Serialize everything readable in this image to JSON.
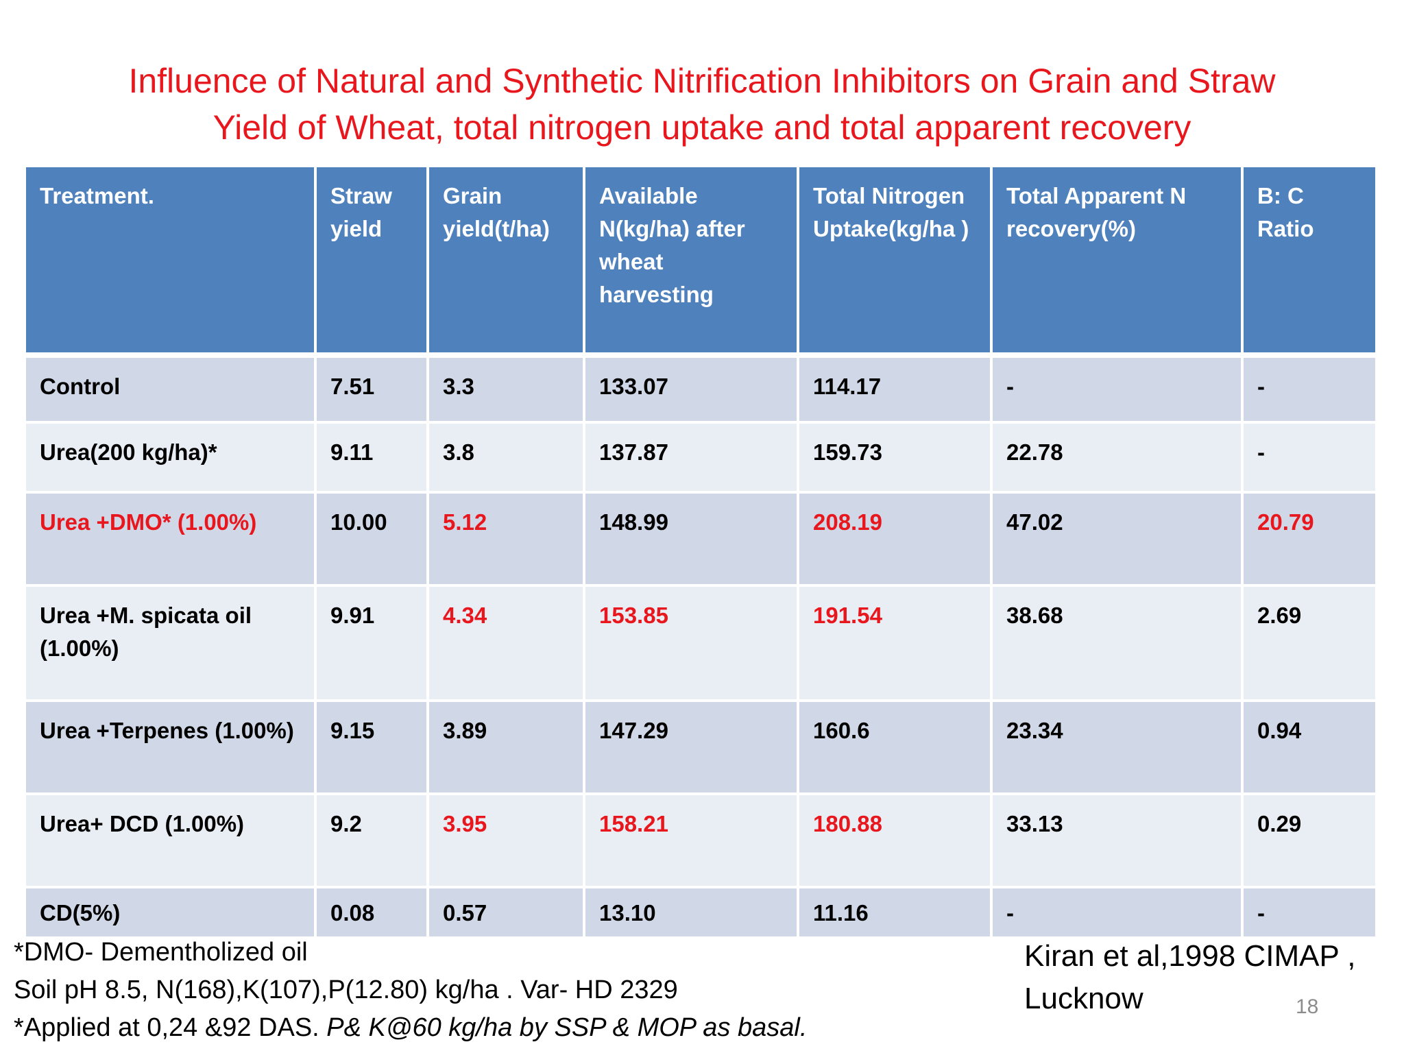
{
  "title": {
    "line1": "Influence of Natural and Synthetic Nitrification Inhibitors on Grain and Straw",
    "line2": "Yield of Wheat,  total nitrogen uptake and total apparent recovery"
  },
  "table": {
    "headers": [
      "Treatment.",
      "Straw yield",
      "Grain yield(t/ha)",
      "Available N(kg/ha) after wheat harvesting",
      "Total Nitrogen Uptake(kg/ha )",
      "Total Apparent  N recovery(%)",
      "B: C Ratio"
    ],
    "rows": [
      {
        "treatment": "Control",
        "straw": "7.51",
        "grain": "3.3",
        "available_n": "133.07",
        "n_uptake": "114.17",
        "recovery": "-",
        "bc_ratio": "-"
      },
      {
        "treatment": "Urea(200 kg/ha)*",
        "straw": "9.11",
        "grain": "3.8",
        "available_n": "137.87",
        "n_uptake": "159.73",
        "recovery": "22.78",
        "bc_ratio": "-"
      },
      {
        "treatment": "Urea +DMO* (1.00%)",
        "straw": "10.00",
        "grain": "5.12",
        "available_n": "148.99",
        "n_uptake": "208.19",
        "recovery": "47.02",
        "bc_ratio": "20.79"
      },
      {
        "treatment": "Urea +M. spicata oil (1.00%)",
        "straw": "9.91",
        "grain": "4.34",
        "available_n": "153.85",
        "n_uptake": "191.54",
        "recovery": "38.68",
        "bc_ratio": "2.69"
      },
      {
        "treatment": "Urea +Terpenes (1.00%)",
        "straw": "9.15",
        "grain": "3.89",
        "available_n": "147.29",
        "n_uptake": "160.6",
        "recovery": "23.34",
        "bc_ratio": "0.94"
      },
      {
        "treatment": "Urea+ DCD (1.00%)",
        "straw": "9.2",
        "grain": "3.95",
        "available_n": "158.21",
        "n_uptake": "180.88",
        "recovery": "33.13",
        "bc_ratio": "0.29"
      },
      {
        "treatment": "CD(5%)",
        "straw": "0.08",
        "grain": "0.57",
        "available_n": "13.10",
        "n_uptake": "11.16",
        "recovery": "-",
        "bc_ratio": "-"
      }
    ]
  },
  "footnotes": {
    "line1": "*DMO- Dementholized oil",
    "line2": "Soil pH  8.5, N(168),K(107),P(12.80) kg/ha . Var- HD 2329",
    "line3_plain": "*Applied at 0,24 &92 DAS. ",
    "line3_italic": "P& K@60 kg/ha by SSP & MOP as basal."
  },
  "citation": {
    "line1": "Kiran et al,1998 CIMAP ,",
    "line2": "Lucknow"
  },
  "slide_number": "18",
  "colors": {
    "accent_red": "#e8171d",
    "header_blue": "#4f81bd",
    "row_dark": "#d0d8e8",
    "row_light": "#e9edf4"
  }
}
